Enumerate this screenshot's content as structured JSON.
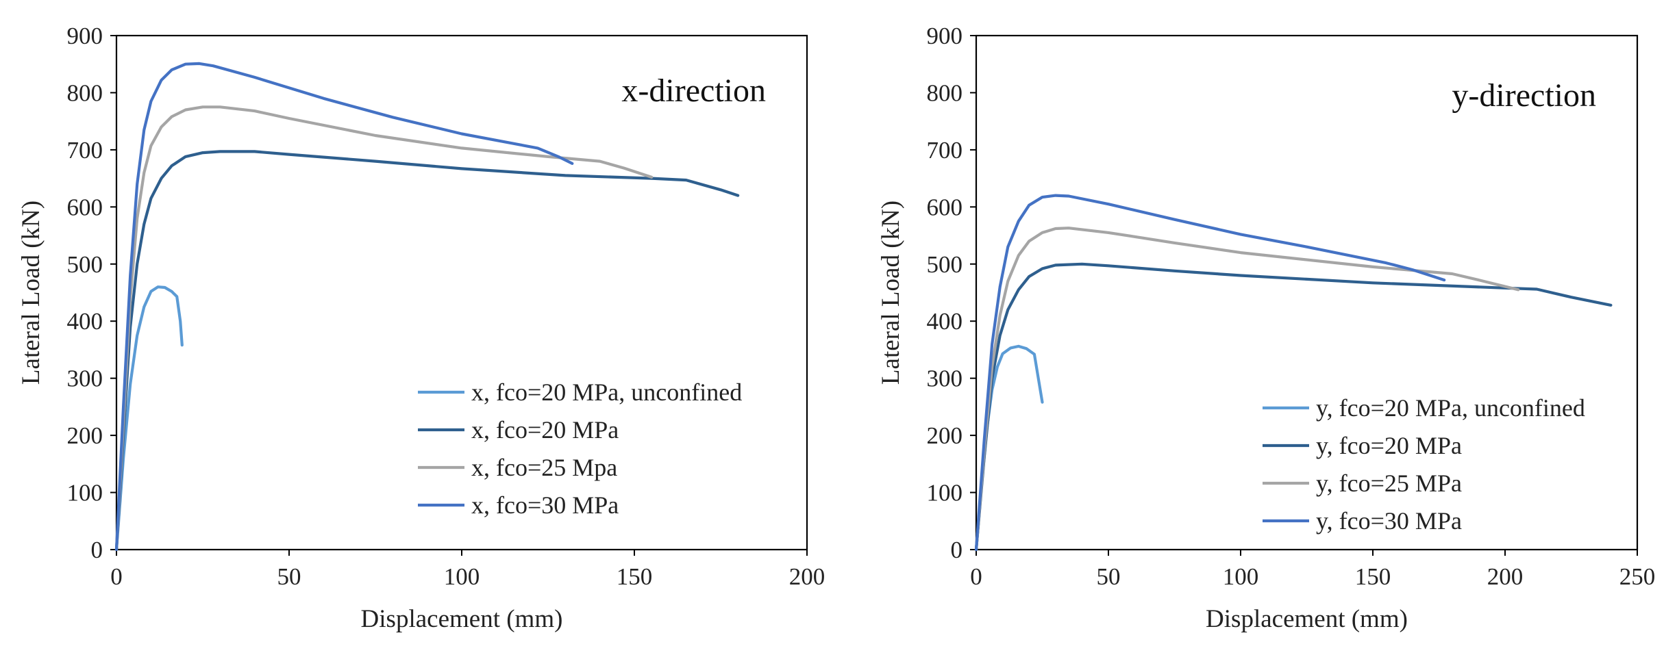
{
  "chart_data": [
    {
      "type": "line",
      "title": "",
      "annotation": "x-direction",
      "xlabel": "Displacement (mm)",
      "ylabel": "Lateral Load (kN)",
      "xlim": [
        0,
        200
      ],
      "ylim": [
        0,
        900
      ],
      "xticks": [
        0,
        50,
        100,
        150,
        200
      ],
      "yticks": [
        0,
        100,
        200,
        300,
        400,
        500,
        600,
        700,
        800,
        900
      ],
      "grid": false,
      "legend": "bottom-right",
      "series": [
        {
          "name": "x, fco=20 MPa, unconfined",
          "color": "#5b9bd5",
          "points": [
            [
              0,
              0
            ],
            [
              2,
              160
            ],
            [
              4,
              290
            ],
            [
              6,
              375
            ],
            [
              8,
              425
            ],
            [
              10,
              452
            ],
            [
              12,
              460
            ],
            [
              14,
              459
            ],
            [
              16,
              452
            ],
            [
              17.5,
              443
            ],
            [
              18.5,
              400
            ],
            [
              19,
              358
            ]
          ]
        },
        {
          "name": "x, fco=20 MPa",
          "color": "#2e5f8e",
          "points": [
            [
              0,
              0
            ],
            [
              2,
              200
            ],
            [
              4,
              390
            ],
            [
              6,
              500
            ],
            [
              8,
              570
            ],
            [
              10,
              615
            ],
            [
              13,
              650
            ],
            [
              16,
              672
            ],
            [
              20,
              688
            ],
            [
              25,
              695
            ],
            [
              30,
              697
            ],
            [
              40,
              697
            ],
            [
              50,
              692
            ],
            [
              75,
              680
            ],
            [
              100,
              667
            ],
            [
              130,
              655
            ],
            [
              155,
              650
            ],
            [
              165,
              647
            ],
            [
              175,
              630
            ],
            [
              180,
              620
            ]
          ]
        },
        {
          "name": "x, fco=25 Mpa",
          "color": "#a5a5a5",
          "points": [
            [
              0,
              0
            ],
            [
              2,
              220
            ],
            [
              4,
              440
            ],
            [
              6,
              580
            ],
            [
              8,
              660
            ],
            [
              10,
              707
            ],
            [
              13,
              740
            ],
            [
              16,
              758
            ],
            [
              20,
              770
            ],
            [
              25,
              775
            ],
            [
              30,
              775
            ],
            [
              40,
              768
            ],
            [
              50,
              755
            ],
            [
              75,
              725
            ],
            [
              100,
              703
            ],
            [
              125,
              688
            ],
            [
              140,
              680
            ],
            [
              147,
              668
            ],
            [
              155,
              652
            ]
          ]
        },
        {
          "name": "x, fco=30 MPa",
          "color": "#4472c4",
          "points": [
            [
              0,
              0
            ],
            [
              2,
              250
            ],
            [
              4,
              480
            ],
            [
              6,
              640
            ],
            [
              8,
              735
            ],
            [
              10,
              785
            ],
            [
              13,
              822
            ],
            [
              16,
              840
            ],
            [
              20,
              850
            ],
            [
              24,
              851
            ],
            [
              28,
              847
            ],
            [
              40,
              827
            ],
            [
              60,
              790
            ],
            [
              80,
              757
            ],
            [
              100,
              728
            ],
            [
              122,
              703
            ],
            [
              128,
              688
            ],
            [
              132,
              676
            ]
          ]
        }
      ]
    },
    {
      "type": "line",
      "title": "",
      "annotation": "y-direction",
      "xlabel": "Displacement (mm)",
      "ylabel": "Lateral Load (kN)",
      "xlim": [
        0,
        250
      ],
      "ylim": [
        0,
        900
      ],
      "xticks": [
        0,
        50,
        100,
        150,
        200,
        250
      ],
      "yticks": [
        0,
        100,
        200,
        300,
        400,
        500,
        600,
        700,
        800,
        900
      ],
      "grid": false,
      "legend": "bottom-right",
      "series": [
        {
          "name": "y, fco=20 MPa, unconfined",
          "color": "#5b9bd5",
          "points": [
            [
              0,
              0
            ],
            [
              2,
              110
            ],
            [
              4,
              210
            ],
            [
              6,
              280
            ],
            [
              8,
              320
            ],
            [
              10,
              343
            ],
            [
              13,
              353
            ],
            [
              16,
              356
            ],
            [
              19,
              352
            ],
            [
              22,
              342
            ],
            [
              23.5,
              300
            ],
            [
              25,
              258
            ]
          ]
        },
        {
          "name": "y, fco=20 MPa",
          "color": "#2e5f8e",
          "points": [
            [
              0,
              0
            ],
            [
              3,
              160
            ],
            [
              6,
              300
            ],
            [
              9,
              375
            ],
            [
              12,
              420
            ],
            [
              16,
              455
            ],
            [
              20,
              478
            ],
            [
              25,
              492
            ],
            [
              30,
              498
            ],
            [
              40,
              500
            ],
            [
              50,
              497
            ],
            [
              75,
              488
            ],
            [
              100,
              480
            ],
            [
              150,
              467
            ],
            [
              200,
              458
            ],
            [
              212,
              456
            ],
            [
              225,
              442
            ],
            [
              240,
              428
            ]
          ]
        },
        {
          "name": "y, fco=25 MPa",
          "color": "#a5a5a5",
          "points": [
            [
              0,
              0
            ],
            [
              3,
              170
            ],
            [
              6,
              320
            ],
            [
              9,
              410
            ],
            [
              12,
              470
            ],
            [
              16,
              515
            ],
            [
              20,
              540
            ],
            [
              25,
              555
            ],
            [
              30,
              562
            ],
            [
              35,
              563
            ],
            [
              50,
              555
            ],
            [
              75,
              537
            ],
            [
              100,
              520
            ],
            [
              150,
              495
            ],
            [
              180,
              483
            ],
            [
              190,
              472
            ],
            [
              205,
              455
            ]
          ]
        },
        {
          "name": "y, fco=30 MPa",
          "color": "#4472c4",
          "points": [
            [
              0,
              0
            ],
            [
              3,
              190
            ],
            [
              6,
              360
            ],
            [
              9,
              460
            ],
            [
              12,
              530
            ],
            [
              16,
              575
            ],
            [
              20,
              603
            ],
            [
              25,
              617
            ],
            [
              30,
              620
            ],
            [
              35,
              619
            ],
            [
              50,
              605
            ],
            [
              75,
              578
            ],
            [
              100,
              552
            ],
            [
              125,
              530
            ],
            [
              155,
              502
            ],
            [
              165,
              490
            ],
            [
              177,
              472
            ]
          ]
        }
      ]
    }
  ]
}
